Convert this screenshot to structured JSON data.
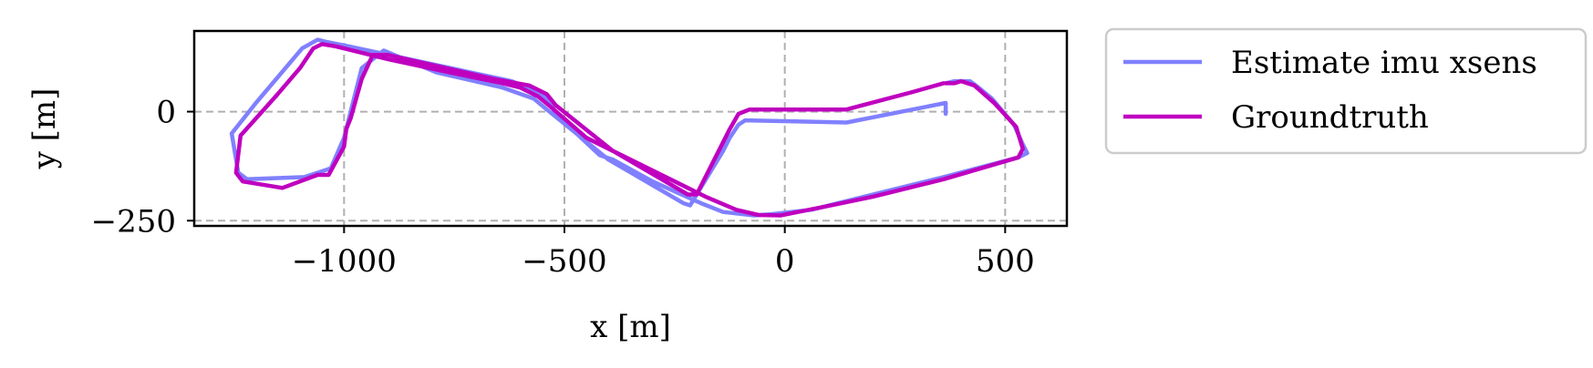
{
  "chart_data": {
    "type": "line",
    "xlabel": "x [m]",
    "ylabel": "y [m]",
    "xlim": [
      -1340,
      640
    ],
    "ylim": [
      -262,
      185
    ],
    "grid": true,
    "legend_position": "outside-right",
    "x_ticks": [
      {
        "value": -1000,
        "label": "−1000"
      },
      {
        "value": -500,
        "label": "−500"
      },
      {
        "value": 0,
        "label": "0"
      },
      {
        "value": 500,
        "label": "500"
      }
    ],
    "y_ticks": [
      {
        "value": 0,
        "label": "0"
      },
      {
        "value": -250,
        "label": "−250"
      }
    ],
    "series": [
      {
        "name": "Estimate imu xsens",
        "color": "#8080ff",
        "points": [
          [
            365,
            -5
          ],
          [
            365,
            20
          ],
          [
            290,
            5
          ],
          [
            140,
            -25
          ],
          [
            -90,
            -20
          ],
          [
            -105,
            -30
          ],
          [
            -125,
            -60
          ],
          [
            -140,
            -90
          ],
          [
            -215,
            -215
          ],
          [
            -230,
            -210
          ],
          [
            -400,
            -110
          ],
          [
            -540,
            5
          ],
          [
            -570,
            30
          ],
          [
            -640,
            55
          ],
          [
            -790,
            90
          ],
          [
            -910,
            140
          ],
          [
            -960,
            100
          ],
          [
            -1000,
            -60
          ],
          [
            -1030,
            -130
          ],
          [
            -1060,
            -140
          ],
          [
            -1090,
            -150
          ],
          [
            -1220,
            -155
          ],
          [
            -1240,
            -140
          ],
          [
            -1255,
            -50
          ],
          [
            -1200,
            20
          ],
          [
            -1095,
            145
          ],
          [
            -1060,
            165
          ],
          [
            -1040,
            160
          ],
          [
            -990,
            150
          ],
          [
            -620,
            70
          ],
          [
            -560,
            45
          ],
          [
            -530,
            20
          ],
          [
            -520,
            -5
          ],
          [
            -420,
            -100
          ],
          [
            -390,
            -110
          ],
          [
            -300,
            -160
          ],
          [
            -190,
            -210
          ],
          [
            -140,
            -230
          ],
          [
            -70,
            -238
          ],
          [
            -30,
            -235
          ],
          [
            60,
            -225
          ],
          [
            200,
            -190
          ],
          [
            360,
            -150
          ],
          [
            530,
            -105
          ],
          [
            550,
            -95
          ],
          [
            540,
            -75
          ],
          [
            520,
            -30
          ],
          [
            470,
            30
          ],
          [
            440,
            55
          ],
          [
            420,
            70
          ],
          [
            385,
            70
          ],
          [
            365,
            65
          ]
        ]
      },
      {
        "name": "Groundtruth",
        "color": "#bf00bf",
        "points": [
          [
            360,
            65
          ],
          [
            290,
            45
          ],
          [
            140,
            5
          ],
          [
            -80,
            5
          ],
          [
            -105,
            -5
          ],
          [
            -125,
            -40
          ],
          [
            -200,
            -190
          ],
          [
            -220,
            -190
          ],
          [
            -390,
            -90
          ],
          [
            -520,
            15
          ],
          [
            -540,
            40
          ],
          [
            -580,
            60
          ],
          [
            -660,
            75
          ],
          [
            -900,
            130
          ],
          [
            -935,
            130
          ],
          [
            -960,
            75
          ],
          [
            -985,
            -15
          ],
          [
            -995,
            -40
          ],
          [
            -1000,
            -80
          ],
          [
            -1035,
            -145
          ],
          [
            -1060,
            -145
          ],
          [
            -1140,
            -175
          ],
          [
            -1230,
            -160
          ],
          [
            -1245,
            -140
          ],
          [
            -1235,
            -55
          ],
          [
            -1155,
            35
          ],
          [
            -1100,
            100
          ],
          [
            -1070,
            145
          ],
          [
            -1050,
            155
          ],
          [
            -1020,
            150
          ],
          [
            -900,
            120
          ],
          [
            -760,
            90
          ],
          [
            -640,
            65
          ],
          [
            -600,
            55
          ],
          [
            -560,
            35
          ],
          [
            -530,
            10
          ],
          [
            -450,
            -60
          ],
          [
            -400,
            -85
          ],
          [
            -310,
            -130
          ],
          [
            -220,
            -175
          ],
          [
            -180,
            -195
          ],
          [
            -110,
            -225
          ],
          [
            -60,
            -237
          ],
          [
            -10,
            -238
          ],
          [
            80,
            -220
          ],
          [
            200,
            -195
          ],
          [
            360,
            -155
          ],
          [
            530,
            -105
          ],
          [
            540,
            -85
          ],
          [
            525,
            -35
          ],
          [
            475,
            20
          ],
          [
            430,
            60
          ],
          [
            400,
            70
          ],
          [
            385,
            65
          ],
          [
            365,
            65
          ]
        ]
      }
    ]
  }
}
